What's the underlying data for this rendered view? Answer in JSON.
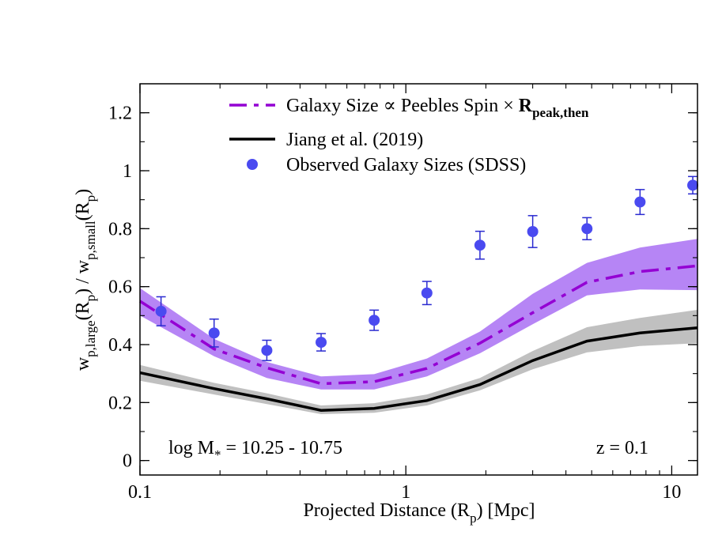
{
  "chart_data": {
    "type": "line",
    "title": "",
    "xlabel": {
      "main": "Projected Distance (R",
      "sub": "p",
      "tail": ") [Mpc]"
    },
    "ylabel": {
      "w1": "w",
      "sub1": "p,large",
      "mid": "(R",
      "sub2": "p",
      "close": ") / w",
      "sub3": "p,small",
      "mid2": "(R",
      "sub4": "p",
      "end": ")"
    },
    "xscale": "log",
    "xlim": [
      0.1,
      12.5
    ],
    "ylim": [
      -0.05,
      1.3
    ],
    "xticks": [
      {
        "value": 0.1,
        "label": "0.1"
      },
      {
        "value": 1,
        "label": "1"
      },
      {
        "value": 10,
        "label": "10"
      }
    ],
    "yticks": [
      {
        "value": 0,
        "label": "0"
      },
      {
        "value": 0.2,
        "label": "0.2"
      },
      {
        "value": 0.4,
        "label": "0.4"
      },
      {
        "value": 0.6,
        "label": "0.6"
      },
      {
        "value": 0.8,
        "label": "0.8"
      },
      {
        "value": 1,
        "label": "1"
      },
      {
        "value": 1.2,
        "label": "1.2"
      }
    ],
    "series": [
      {
        "name": "Galaxy Size ∝ Peebles Spin × R_peak,then",
        "style": "dash-dot",
        "color": "#9400d3",
        "band_color": "#b685f5",
        "x": [
          0.1,
          0.19,
          0.3,
          0.48,
          0.76,
          1.2,
          1.9,
          3.0,
          4.8,
          7.6,
          12.5
        ],
        "y": [
          0.55,
          0.385,
          0.32,
          0.265,
          0.272,
          0.318,
          0.405,
          0.51,
          0.615,
          0.652,
          0.672
        ],
        "lower": [
          0.5,
          0.36,
          0.285,
          0.245,
          0.245,
          0.29,
          0.37,
          0.47,
          0.57,
          0.59,
          0.588
        ],
        "upper": [
          0.595,
          0.42,
          0.34,
          0.29,
          0.298,
          0.352,
          0.445,
          0.575,
          0.682,
          0.735,
          0.765
        ]
      },
      {
        "name": "Jiang et al. (2019)",
        "style": "solid",
        "color": "#000000",
        "band_color": "#c0c0c0",
        "x": [
          0.1,
          0.19,
          0.3,
          0.48,
          0.76,
          1.2,
          1.9,
          3.0,
          4.8,
          7.6,
          12.5
        ],
        "y": [
          0.303,
          0.248,
          0.213,
          0.173,
          0.18,
          0.207,
          0.262,
          0.345,
          0.412,
          0.44,
          0.458
        ],
        "lower": [
          0.275,
          0.228,
          0.195,
          0.16,
          0.165,
          0.19,
          0.242,
          0.315,
          0.373,
          0.395,
          0.405
        ],
        "upper": [
          0.33,
          0.268,
          0.232,
          0.19,
          0.198,
          0.228,
          0.285,
          0.378,
          0.46,
          0.492,
          0.52
        ]
      },
      {
        "name": "Observed Galaxy Sizes (SDSS)",
        "style": "markers",
        "color": "#4a4af0",
        "errcolor": "#2a2ad0",
        "x": [
          0.12,
          0.19,
          0.3,
          0.48,
          0.76,
          1.2,
          1.9,
          3.0,
          4.8,
          7.6,
          12.0
        ],
        "y": [
          0.515,
          0.44,
          0.38,
          0.408,
          0.484,
          0.578,
          0.743,
          0.79,
          0.8,
          0.892,
          0.95
        ],
        "yerr": [
          0.05,
          0.048,
          0.035,
          0.03,
          0.035,
          0.04,
          0.048,
          0.055,
          0.038,
          0.043,
          0.03
        ]
      }
    ],
    "legend": {
      "position": "top-left",
      "entries": [
        {
          "pre": "Galaxy Size ∝ Peebles Spin × ",
          "bold": "R",
          "bold_sub": "peak,then"
        },
        {
          "pre": "Jiang et al. (2019)"
        },
        {
          "pre": "Observed Galaxy Sizes (SDSS)"
        }
      ]
    },
    "annotations": {
      "mass_pre": "log M",
      "mass_sub": "*",
      "mass_post": " = 10.25 - 10.75",
      "redshift": "z = 0.1"
    }
  }
}
